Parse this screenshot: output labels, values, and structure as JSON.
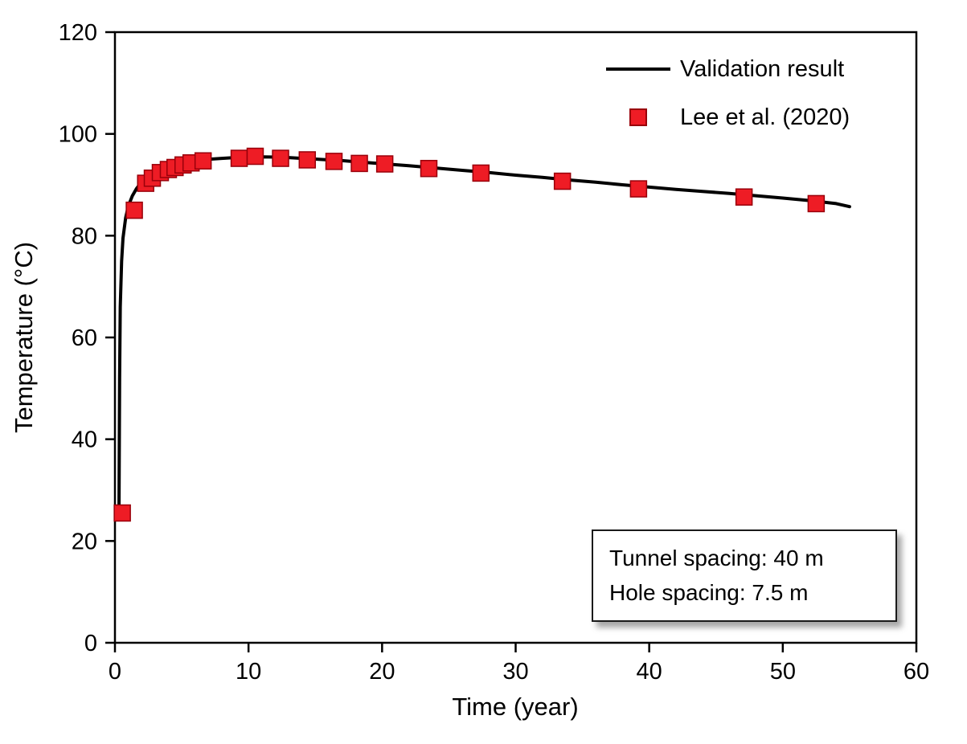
{
  "figure": {
    "background": "#ffffff",
    "frame_color": "#000000"
  },
  "chart_data": {
    "type": "line",
    "title": "",
    "xlabel": "Time (year)",
    "ylabel": "Temperature (°C)",
    "xlim": [
      0,
      60
    ],
    "ylim": [
      0,
      120
    ],
    "xticks": [
      0,
      10,
      20,
      30,
      40,
      50,
      60
    ],
    "yticks": [
      0,
      20,
      40,
      60,
      80,
      100,
      120
    ],
    "grid": false,
    "legend": {
      "position": "top-right-inside",
      "entries": [
        "Validation result",
        "Lee et al. (2020)"
      ]
    },
    "series": [
      {
        "name": "Validation result",
        "type": "line",
        "color": "#000000",
        "line_width": 4,
        "x": [
          0.3,
          0.35,
          0.4,
          0.5,
          0.6,
          0.8,
          1,
          1.3,
          1.6,
          2,
          2.5,
          3,
          3.5,
          4,
          4.5,
          5,
          6,
          7,
          8,
          9,
          10,
          11,
          12,
          13,
          14,
          15,
          16,
          17,
          18,
          19,
          20,
          22,
          24,
          26,
          28,
          30,
          32,
          34,
          36,
          38,
          40,
          42,
          44,
          46,
          48,
          50,
          52,
          54,
          55
        ],
        "y": [
          25,
          52,
          66,
          75,
          79.5,
          83.5,
          85.8,
          87.8,
          89.2,
          90.6,
          91.8,
          92.6,
          93.2,
          93.7,
          94.0,
          94.3,
          94.7,
          95.0,
          95.2,
          95.35,
          95.45,
          95.5,
          95.45,
          95.35,
          95.2,
          95.05,
          94.9,
          94.75,
          94.55,
          94.35,
          94.15,
          93.75,
          93.3,
          92.85,
          92.4,
          91.9,
          91.45,
          90.95,
          90.5,
          90.0,
          89.55,
          89.1,
          88.7,
          88.3,
          87.85,
          87.4,
          86.9,
          86.3,
          85.7
        ]
      },
      {
        "name": "Lee et al. (2020)",
        "type": "scatter",
        "marker": "square",
        "marker_size": 20,
        "color": "#ee1c25",
        "edge_color": "#99000a",
        "x": [
          0.55,
          1.45,
          2.3,
          2.8,
          3.4,
          4.0,
          4.5,
          5.1,
          5.7,
          6.6,
          9.3,
          10.5,
          12.4,
          14.4,
          16.4,
          18.3,
          20.2,
          23.5,
          27.4,
          33.5,
          39.2,
          47.1,
          52.5
        ],
        "y": [
          25.5,
          85,
          90.3,
          91.3,
          92.4,
          93,
          93.4,
          93.9,
          94.3,
          94.7,
          95.2,
          95.6,
          95.2,
          94.9,
          94.6,
          94.2,
          94.1,
          93.2,
          92.3,
          90.7,
          89.2,
          87.6,
          86.3
        ]
      }
    ],
    "annotation": {
      "lines": [
        "Tunnel spacing: 40 m",
        "Hole spacing: 7.5 m"
      ]
    }
  }
}
